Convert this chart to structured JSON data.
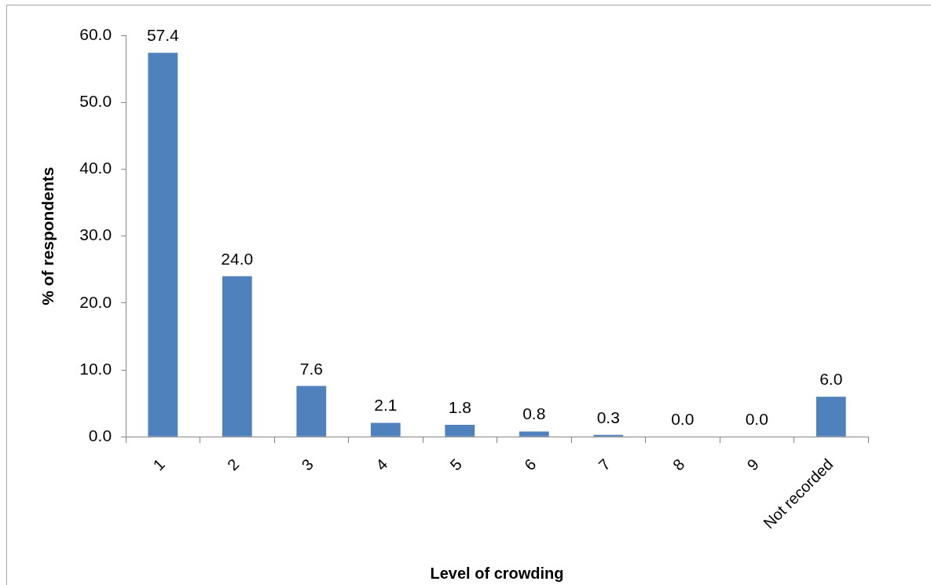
{
  "chart_data": {
    "type": "bar",
    "xlabel": "Level of crowding",
    "ylabel": "% of respondents",
    "categories": [
      "1",
      "2",
      "3",
      "4",
      "5",
      "6",
      "7",
      "8",
      "9",
      "Not recorded"
    ],
    "values": [
      57.4,
      24.0,
      7.6,
      2.1,
      1.8,
      0.8,
      0.3,
      0.0,
      0.0,
      6.0
    ],
    "value_labels": [
      "57.4",
      "24.0",
      "7.6",
      "2.1",
      "1.8",
      "0.8",
      "0.3",
      "0.0",
      "0.0",
      "6.0"
    ],
    "color": "#4f81bd",
    "ylim": [
      0,
      60
    ],
    "yticks": [
      {
        "value": 0,
        "label": "0.0"
      },
      {
        "value": 10,
        "label": "10.0"
      },
      {
        "value": 20,
        "label": "20.0"
      },
      {
        "value": 30,
        "label": "30.0"
      },
      {
        "value": 40,
        "label": "40.0"
      },
      {
        "value": 50,
        "label": "50.0"
      },
      {
        "value": 60,
        "label": "60.0"
      }
    ]
  }
}
